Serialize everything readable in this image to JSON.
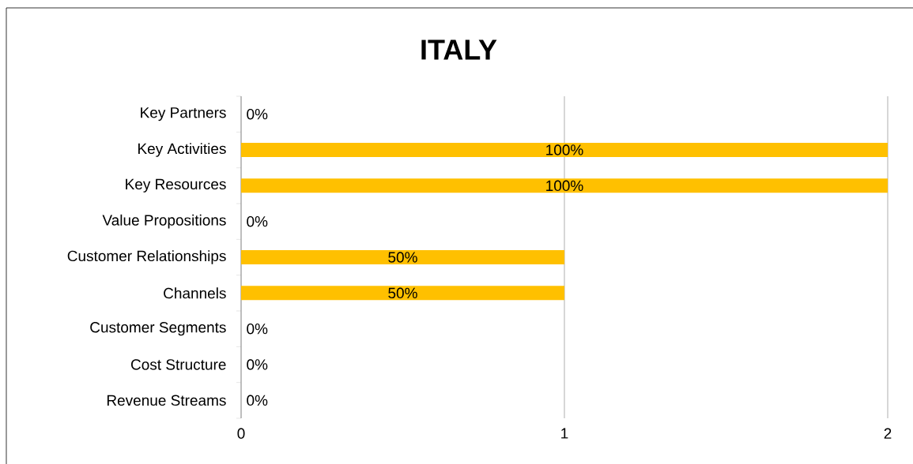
{
  "chart_data": {
    "type": "bar",
    "orientation": "horizontal",
    "title": "ITALY",
    "categories": [
      "Key Partners",
      "Key Activities",
      "Key Resources",
      "Value Propositions",
      "Customer Relationships",
      "Channels",
      "Customer Segments",
      "Cost Structure",
      "Revenue Streams"
    ],
    "values": [
      0,
      2,
      2,
      0,
      1,
      1,
      0,
      0,
      0
    ],
    "annotations": [
      "0%",
      "100%",
      "100%",
      "0%",
      "50%",
      "50%",
      "0%",
      "0%",
      "0%"
    ],
    "color": "#ffc000",
    "xlim": [
      0,
      2
    ],
    "xticks": [
      0,
      1,
      2
    ],
    "grid": "x"
  }
}
